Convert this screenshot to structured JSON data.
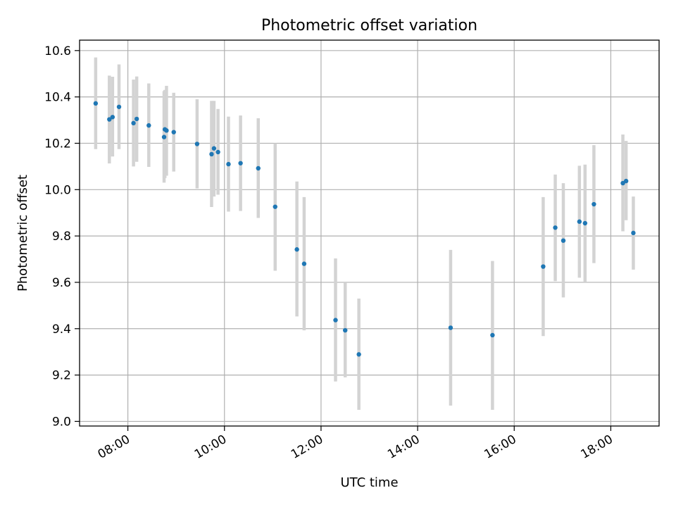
{
  "chart_data": {
    "type": "scatter",
    "title": "Photometric offset variation",
    "xlabel": "UTC time",
    "ylabel": "Photometric offset",
    "xlim": [
      "07:00",
      "19:00"
    ],
    "ylim": [
      8.98,
      10.645
    ],
    "xticks": [
      "08:00",
      "10:00",
      "12:00",
      "14:00",
      "16:00",
      "18:00"
    ],
    "yticks": [
      "9.0",
      "9.2",
      "9.4",
      "9.6",
      "9.8",
      "10.0",
      "10.2",
      "10.4",
      "10.6"
    ],
    "grid": true,
    "errorbar_color": "#d3d3d3",
    "point_color": "#1f77b4",
    "points": [
      {
        "x": "07:20",
        "y": 10.372,
        "lo": 10.175,
        "hi": 10.57
      },
      {
        "x": "07:37",
        "y": 10.303,
        "lo": 10.113,
        "hi": 10.492
      },
      {
        "x": "07:41",
        "y": 10.313,
        "lo": 10.143,
        "hi": 10.487
      },
      {
        "x": "07:49",
        "y": 10.357,
        "lo": 10.175,
        "hi": 10.54
      },
      {
        "x": "08:07",
        "y": 10.287,
        "lo": 10.1,
        "hi": 10.475
      },
      {
        "x": "08:11",
        "y": 10.305,
        "lo": 10.12,
        "hi": 10.488
      },
      {
        "x": "08:26",
        "y": 10.277,
        "lo": 10.098,
        "hi": 10.458
      },
      {
        "x": "08:45",
        "y": 10.227,
        "lo": 10.03,
        "hi": 10.425
      },
      {
        "x": "08:46",
        "y": 10.26,
        "lo": 10.05,
        "hi": 10.43
      },
      {
        "x": "08:48",
        "y": 10.255,
        "lo": 10.06,
        "hi": 10.448
      },
      {
        "x": "08:57",
        "y": 10.248,
        "lo": 10.078,
        "hi": 10.418
      },
      {
        "x": "09:26",
        "y": 10.197,
        "lo": 10.005,
        "hi": 10.39
      },
      {
        "x": "09:44",
        "y": 10.153,
        "lo": 9.925,
        "hi": 10.383
      },
      {
        "x": "09:47",
        "y": 10.178,
        "lo": 9.97,
        "hi": 10.383
      },
      {
        "x": "09:52",
        "y": 10.162,
        "lo": 9.978,
        "hi": 10.348
      },
      {
        "x": "10:05",
        "y": 10.11,
        "lo": 9.905,
        "hi": 10.315
      },
      {
        "x": "10:20",
        "y": 10.114,
        "lo": 9.908,
        "hi": 10.32
      },
      {
        "x": "10:42",
        "y": 10.092,
        "lo": 9.878,
        "hi": 10.308
      },
      {
        "x": "11:03",
        "y": 9.926,
        "lo": 9.65,
        "hi": 10.2
      },
      {
        "x": "11:30",
        "y": 9.742,
        "lo": 9.453,
        "hi": 10.035
      },
      {
        "x": "11:39",
        "y": 9.68,
        "lo": 9.393,
        "hi": 9.968
      },
      {
        "x": "12:18",
        "y": 9.437,
        "lo": 9.172,
        "hi": 9.703
      },
      {
        "x": "12:30",
        "y": 9.393,
        "lo": 9.19,
        "hi": 9.597
      },
      {
        "x": "12:47",
        "y": 9.289,
        "lo": 9.05,
        "hi": 9.53
      },
      {
        "x": "14:41",
        "y": 9.404,
        "lo": 9.068,
        "hi": 9.74
      },
      {
        "x": "15:33",
        "y": 9.372,
        "lo": 9.05,
        "hi": 9.692
      },
      {
        "x": "16:36",
        "y": 9.668,
        "lo": 9.368,
        "hi": 9.968
      },
      {
        "x": "16:51",
        "y": 9.836,
        "lo": 9.605,
        "hi": 10.065
      },
      {
        "x": "17:01",
        "y": 9.78,
        "lo": 9.535,
        "hi": 10.028
      },
      {
        "x": "17:21",
        "y": 9.862,
        "lo": 9.62,
        "hi": 10.103
      },
      {
        "x": "17:28",
        "y": 9.855,
        "lo": 9.603,
        "hi": 10.108
      },
      {
        "x": "17:39",
        "y": 9.937,
        "lo": 9.683,
        "hi": 10.192
      },
      {
        "x": "18:15",
        "y": 10.028,
        "lo": 9.82,
        "hi": 10.238
      },
      {
        "x": "18:19",
        "y": 10.037,
        "lo": 9.868,
        "hi": 10.21
      },
      {
        "x": "18:28",
        "y": 9.813,
        "lo": 9.655,
        "hi": 9.97
      }
    ]
  }
}
